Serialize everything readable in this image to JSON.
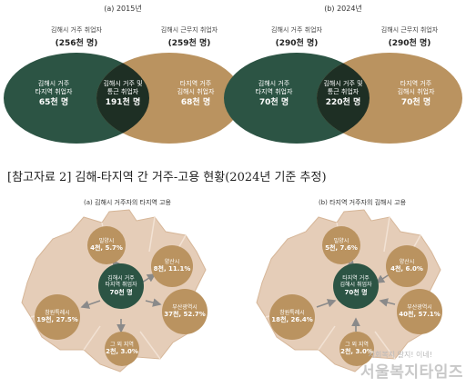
{
  "colors": {
    "green": "#2c5444",
    "gold": "#ba9360",
    "overlap": "#1e2f24",
    "map": "#e5cdb8",
    "mapEdge": "#d6b698",
    "dot": "#8a8a8a"
  },
  "venn_2015": {
    "panel_title": "(a) 2015년",
    "left_top_label": "김해시 거주 취업자",
    "left_top_value": "(256천 명)",
    "right_top_label": "김해시 근무지 취업자",
    "right_top_value": "(259천 명)",
    "left_lines": [
      "김해시 거주",
      "타지역 취업자"
    ],
    "left_value": "65천 명",
    "mid_lines": [
      "김해시 거주 및",
      "통근 취업자"
    ],
    "mid_value": "191천 명",
    "right_lines": [
      "타지역 거주",
      "김해시 취업자"
    ],
    "right_value": "68천 명"
  },
  "venn_2024": {
    "panel_title": "(b) 2024년",
    "left_top_label": "김해시 거주 취업자",
    "left_top_value": "(290천 명)",
    "right_top_label": "김해시 근무지 취업자",
    "right_top_value": "(290천 명)",
    "left_lines": [
      "김해시 거주",
      "타지역 취업자"
    ],
    "left_value": "70천 명",
    "mid_lines": [
      "김해시 거주 및",
      "통근 취업자"
    ],
    "mid_value": "220천 명",
    "right_lines": [
      "타지역 거주",
      "김해시 취업자"
    ],
    "right_value": "70천 명"
  },
  "reference_title": "[참고자료 2] 김해-타지역 간 거주-고용 현황(2024년 기준 추정)",
  "map_a": {
    "title": "(a) 김해시 거주자의 타지역 고용",
    "center": {
      "lines": [
        "김해시 거주",
        "타지역 취업자"
      ],
      "value": "70천 명"
    },
    "nodes": [
      {
        "name": "밀양시",
        "value": "4천, 5.7%"
      },
      {
        "name": "양산시",
        "value": "8천, 11.1%"
      },
      {
        "name": "부산광역시",
        "value": "37천, 52.7%"
      },
      {
        "name": "그 외 지역",
        "value": "2천, 3.0%"
      },
      {
        "name": "창원특례시",
        "value": "19천, 27.5%"
      }
    ]
  },
  "map_b": {
    "title": "(b) 타지역 거주자의 김해시 고용",
    "center": {
      "lines": [
        "타지역 거주",
        "김해시 취업자"
      ],
      "value": "70천 명"
    },
    "nodes": [
      {
        "name": "밀양시",
        "value": "5천, 7.6%"
      },
      {
        "name": "양산시",
        "value": "4천, 6.0%"
      },
      {
        "name": "부산광역시",
        "value": "40천, 57.1%"
      },
      {
        "name": "그 외 지역",
        "value": "2천, 3.0%"
      },
      {
        "name": "창원특례시",
        "value": "18천, 26.4%"
      }
    ]
  },
  "watermark": {
    "text": "서울복지타임즈",
    "subtext": "사회복지 알지! 이네!"
  }
}
